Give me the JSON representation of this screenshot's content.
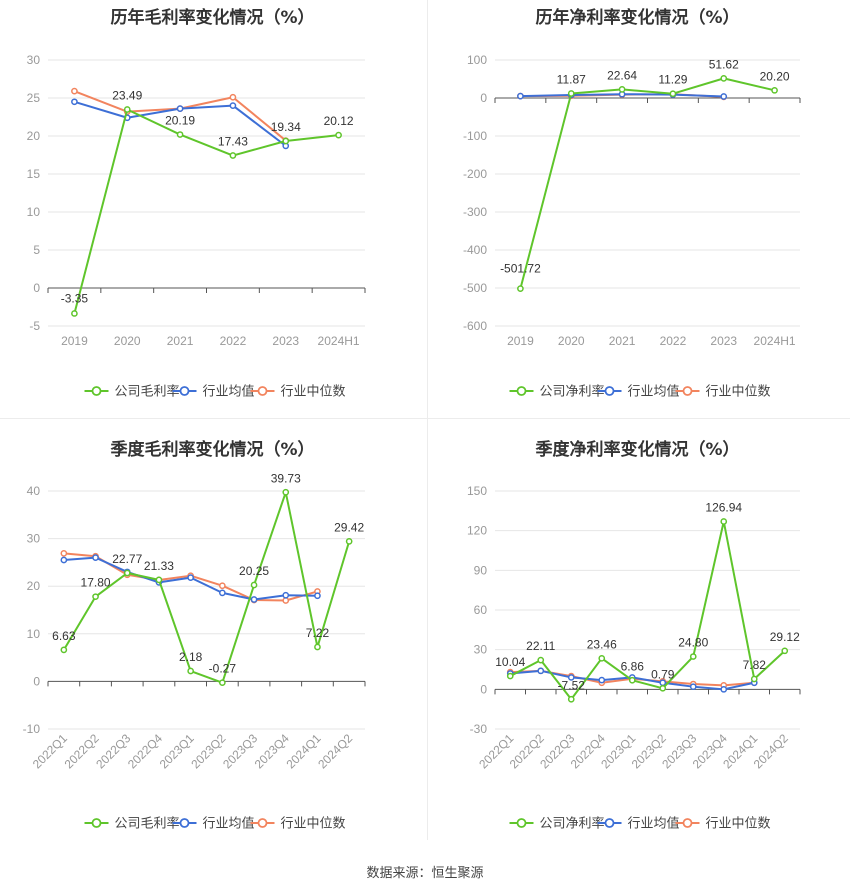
{
  "source": "数据来源：恒生聚源",
  "legend_labels": [
    "公司毛利率",
    "行业均值",
    "行业中位数"
  ],
  "colors": {
    "company": "#5fc52b",
    "mean": "#3d6fd6",
    "median": "#f2845e",
    "axis": "#555555",
    "grid": "#e6e6e6",
    "label": "#999999"
  },
  "chart_data": [
    {
      "type": "line",
      "title": "历年毛利率变化情况（%）",
      "x": [
        "2019",
        "2020",
        "2021",
        "2022",
        "2023",
        "2024H1"
      ],
      "ylim": [
        -5,
        30
      ],
      "yticks": [
        -5,
        0,
        5,
        10,
        15,
        20,
        25,
        30
      ],
      "legend": [
        "公司毛利率",
        "行业均值",
        "行业中位数"
      ],
      "series": [
        {
          "name": "公司毛利率",
          "values": [
            -3.35,
            23.49,
            20.19,
            17.43,
            19.34,
            20.12
          ],
          "labels": [
            "-3.35",
            "23.49",
            "20.19",
            "17.43",
            "19.34",
            "20.12"
          ]
        },
        {
          "name": "行业均值",
          "values": [
            24.5,
            22.4,
            23.6,
            24.0,
            18.7,
            null
          ]
        },
        {
          "name": "行业中位数",
          "values": [
            25.9,
            23.2,
            23.6,
            25.1,
            19.4,
            null
          ]
        }
      ]
    },
    {
      "type": "line",
      "title": "历年净利率变化情况（%）",
      "x": [
        "2019",
        "2020",
        "2021",
        "2022",
        "2023",
        "2024H1"
      ],
      "ylim": [
        -600,
        100
      ],
      "yticks": [
        -600,
        -500,
        -400,
        -300,
        -200,
        -100,
        0,
        100
      ],
      "legend": [
        "公司净利率",
        "行业均值",
        "行业中位数"
      ],
      "series": [
        {
          "name": "公司净利率",
          "values": [
            -501.72,
            11.87,
            22.64,
            11.29,
            51.62,
            20.2
          ],
          "labels": [
            "-501.72",
            "11.87",
            "22.64",
            "11.29",
            "51.62",
            "20.20"
          ]
        },
        {
          "name": "行业均值",
          "values": [
            5,
            8,
            10,
            9,
            4,
            null
          ]
        },
        {
          "name": "行业中位数",
          "values": [
            5,
            6,
            9,
            10,
            3,
            null
          ]
        }
      ]
    },
    {
      "type": "line",
      "title": "季度毛利率变化情况（%）",
      "x": [
        "2022Q1",
        "2022Q2",
        "2022Q3",
        "2022Q4",
        "2023Q1",
        "2023Q2",
        "2023Q3",
        "2023Q4",
        "2024Q1",
        "2024Q2"
      ],
      "ylim": [
        -10,
        40
      ],
      "yticks": [
        -10,
        0,
        10,
        20,
        30,
        40
      ],
      "legend": [
        "公司毛利率",
        "行业均值",
        "行业中位数"
      ],
      "series": [
        {
          "name": "公司毛利率",
          "values": [
            6.63,
            17.8,
            22.77,
            21.33,
            2.18,
            -0.27,
            20.25,
            39.73,
            7.22,
            29.42
          ],
          "labels": [
            "6.63",
            "17.80",
            "22.77",
            "21.33",
            "2.18",
            "-0.27",
            "20.25",
            "39.73",
            "7.22",
            "29.42"
          ]
        },
        {
          "name": "行业均值",
          "values": [
            25.5,
            26.0,
            23.0,
            20.8,
            21.8,
            18.6,
            17.2,
            18.1,
            18.0,
            null
          ]
        },
        {
          "name": "行业中位数",
          "values": [
            26.9,
            26.3,
            22.4,
            21.3,
            22.2,
            20.1,
            17.1,
            17.0,
            18.9,
            null
          ]
        }
      ]
    },
    {
      "type": "line",
      "title": "季度净利率变化情况（%）",
      "x": [
        "2022Q1",
        "2022Q2",
        "2022Q3",
        "2022Q4",
        "2023Q1",
        "2023Q2",
        "2023Q3",
        "2023Q4",
        "2024Q1",
        "2024Q2"
      ],
      "ylim": [
        -30,
        150
      ],
      "yticks": [
        -30,
        0,
        30,
        60,
        90,
        120,
        150
      ],
      "legend": [
        "公司净利率",
        "行业均值",
        "行业中位数"
      ],
      "series": [
        {
          "name": "公司净利率",
          "values": [
            10.04,
            22.11,
            -7.52,
            23.46,
            6.86,
            0.79,
            24.8,
            126.94,
            7.82,
            29.12
          ],
          "labels": [
            "10.04",
            "22.11",
            "-7.52",
            "23.46",
            "6.86",
            "0.79",
            "24.80",
            "126.94",
            "7.82",
            "29.12"
          ]
        },
        {
          "name": "行业均值",
          "values": [
            12,
            14,
            9,
            7,
            9,
            5,
            2,
            0,
            5,
            null
          ]
        },
        {
          "name": "行业中位数",
          "values": [
            13,
            14,
            10,
            5,
            8,
            6,
            4,
            3,
            5,
            null
          ]
        }
      ]
    }
  ]
}
